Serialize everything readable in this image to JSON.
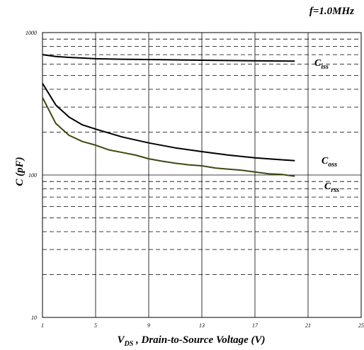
{
  "chart_data": {
    "type": "line",
    "annotation": "f=1.0MHz",
    "xlabel": {
      "main": "V",
      "sub": "DS",
      "rest": " , Drain-to-Source Voltage (V)"
    },
    "ylabel": "C (pF)",
    "xlim": [
      1,
      25
    ],
    "ylim": [
      10,
      1000
    ],
    "yscale": "log",
    "x_ticks": [
      "1",
      "5",
      "9",
      "13",
      "17",
      "21",
      "25"
    ],
    "y_ticks": [
      "10",
      "100",
      "1000"
    ],
    "grid": true,
    "series": [
      {
        "name": "C",
        "name_sub": "iss",
        "color": "#000000",
        "x": [
          1,
          2,
          3,
          5,
          7,
          10,
          13,
          16,
          20
        ],
        "y": [
          700,
          680,
          670,
          655,
          650,
          645,
          640,
          635,
          630
        ]
      },
      {
        "name": "C",
        "name_sub": "oss",
        "color": "#000000",
        "x": [
          1,
          2,
          3,
          4,
          5,
          7,
          9,
          11,
          13,
          15,
          17,
          19,
          20
        ],
        "y": [
          440,
          310,
          255,
          225,
          210,
          185,
          168,
          155,
          146,
          138,
          132,
          128,
          126
        ]
      },
      {
        "name": "C",
        "name_sub": "rss",
        "color": "#3a4a10",
        "x": [
          1,
          2,
          3,
          4,
          5,
          6,
          7,
          8,
          9,
          10,
          11,
          12,
          13,
          14,
          15,
          16,
          17,
          18,
          19,
          20
        ],
        "y": [
          350,
          230,
          190,
          172,
          162,
          150,
          144,
          138,
          130,
          125,
          121,
          118,
          116,
          112,
          110,
          108,
          105,
          102,
          101,
          98
        ]
      }
    ]
  }
}
